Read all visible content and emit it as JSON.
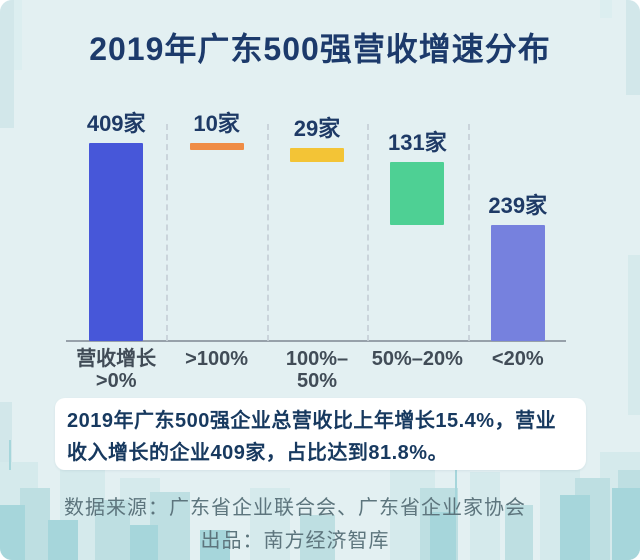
{
  "chart_data": {
    "type": "bar",
    "subtype": "waterfall",
    "title": "2019年广东500强营收增速分布",
    "categories": [
      "营收增长\n>0%",
      ">100%",
      "100%–50%",
      "50%–20%",
      "<20%"
    ],
    "values": [
      409,
      10,
      29,
      131,
      239
    ],
    "value_labels": [
      "409家",
      "10家",
      "29家",
      "131家",
      "239家"
    ],
    "unit": "家",
    "first_bar_is_total": true,
    "ylim": [
      0,
      409
    ],
    "grid": "dashed vertical column separators, solid gray baseline, no y-axis",
    "legend": "none",
    "bar_colors": [
      "#4757d9",
      "#ef8c45",
      "#f3c436",
      "#4ed094",
      "#7681de"
    ]
  },
  "infobox": {
    "text": "2019年广东500强企业总营收比上年增长15.4%，营业收入增长的企业409家，占比达到81.8%。"
  },
  "footer": {
    "source_line": "数据来源：广东省企业联合会、广东省企业家协会",
    "credit_line": "出品：南方经济智库"
  },
  "colors": {
    "background": "#e3f0f2",
    "title_text": "#1c3a6b",
    "value_label_text": "#1e3a66",
    "axis_label_text": "#414c57",
    "info_text": "#17395f",
    "footer_text": "#5d757d",
    "baseline": "#97a1aa",
    "separator": "#c6d0d7",
    "skyline_shades": [
      "#d5eaec",
      "#bedfe2",
      "#a6d6db"
    ]
  }
}
